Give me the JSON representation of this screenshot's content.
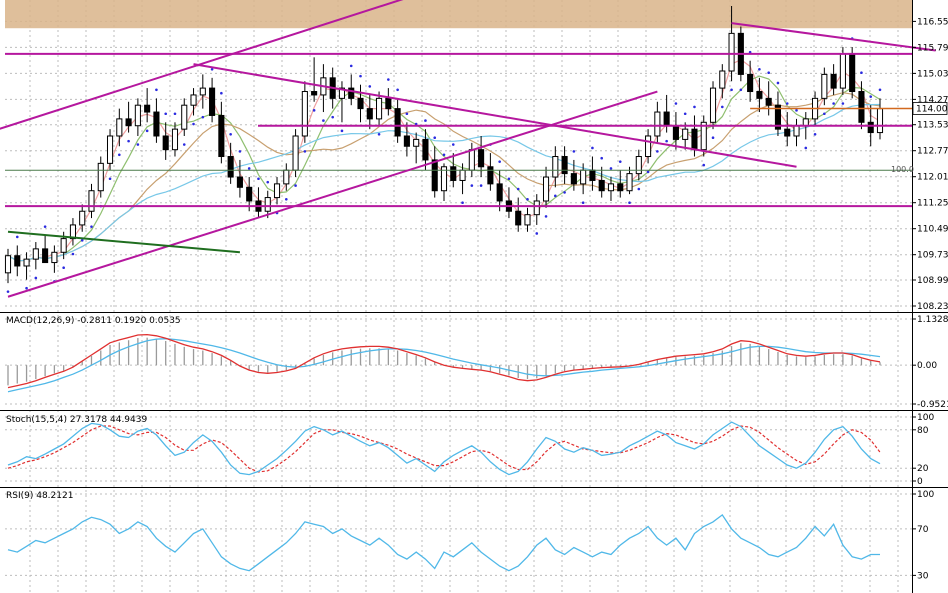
{
  "chart_data": {
    "type": "line",
    "panels": [
      {
        "name": "price",
        "type": "candlestick",
        "ylim": [
          108.23,
          117.0
        ],
        "ticks": [
          "116.550",
          "115.790",
          "115.030",
          "114.270",
          "113.530",
          "112.770",
          "112.010",
          "111.250",
          "110.490",
          "109.730",
          "108.990",
          "108.230"
        ],
        "tick_values": [
          116.55,
          115.79,
          115.03,
          114.27,
          113.53,
          112.77,
          112.01,
          111.25,
          110.49,
          109.73,
          108.99,
          108.23
        ],
        "current_price": "114.005",
        "level_label": "100.0",
        "horizontal_levels": [
          115.6,
          113.5,
          112.2,
          111.15
        ],
        "colors": {
          "trend": "#b5179e",
          "support_green": "#1f6e1f",
          "ma_fast": "#f0a0a0",
          "ma_mid": "#8fbf6f",
          "ma_slow": "#c8a070",
          "ma_long": "#78c8e8",
          "sar": "#2b2be0",
          "upper_band": "#c8a070",
          "current": "#d2691e"
        }
      },
      {
        "name": "macd",
        "label": "MACD(12,26,9) -0.2811 0.1920 0.0535",
        "ylim": [
          -0.9521,
          1.1328
        ],
        "ticks": [
          "1.1328",
          "0.00",
          "-0.9521"
        ],
        "tick_values": [
          1.1328,
          0.0,
          -0.9521
        ],
        "colors": {
          "macd": "#e03030",
          "signal": "#50b8e8",
          "hist": "#9a9a9a"
        }
      },
      {
        "name": "stochastic",
        "label": "Stoch(15,5,4) 27.3178 44.9439",
        "ylim": [
          0,
          100
        ],
        "ticks": [
          "100",
          "80",
          "20",
          "0"
        ],
        "tick_values": [
          100,
          80,
          20,
          0
        ],
        "colors": {
          "k": "#50b8e8",
          "d": "#e03030"
        }
      },
      {
        "name": "rsi",
        "label": "RSI(9) 48.2121",
        "ylim": [
          20,
          100
        ],
        "ticks": [
          "100",
          "70",
          "30"
        ],
        "tick_values": [
          100,
          70,
          30
        ],
        "colors": {
          "rsi": "#50b8e8"
        }
      }
    ],
    "candles_ohlc": [
      [
        109.2,
        109.9,
        108.9,
        109.7
      ],
      [
        109.7,
        110.0,
        109.1,
        109.4
      ],
      [
        109.4,
        109.8,
        109.0,
        109.6
      ],
      [
        109.6,
        110.1,
        109.3,
        109.9
      ],
      [
        109.9,
        110.3,
        109.5,
        109.5
      ],
      [
        109.5,
        110.0,
        109.2,
        109.8
      ],
      [
        109.8,
        110.4,
        109.6,
        110.2
      ],
      [
        110.2,
        110.8,
        110.0,
        110.6
      ],
      [
        110.6,
        111.2,
        110.4,
        111.0
      ],
      [
        111.0,
        111.8,
        110.8,
        111.6
      ],
      [
        111.6,
        112.6,
        111.4,
        112.4
      ],
      [
        112.4,
        113.4,
        112.2,
        113.2
      ],
      [
        113.2,
        114.0,
        112.9,
        113.7
      ],
      [
        113.7,
        114.2,
        113.3,
        113.5
      ],
      [
        113.5,
        114.3,
        113.2,
        114.1
      ],
      [
        114.1,
        114.6,
        113.6,
        113.9
      ],
      [
        113.9,
        114.3,
        113.0,
        113.2
      ],
      [
        113.2,
        113.6,
        112.5,
        112.8
      ],
      [
        112.8,
        113.6,
        112.6,
        113.4
      ],
      [
        113.4,
        114.3,
        113.2,
        114.1
      ],
      [
        114.1,
        114.6,
        113.8,
        114.4
      ],
      [
        114.4,
        115.0,
        114.0,
        114.6
      ],
      [
        114.6,
        114.9,
        113.6,
        113.8
      ],
      [
        113.8,
        114.2,
        112.4,
        112.6
      ],
      [
        112.6,
        113.0,
        111.8,
        112.0
      ],
      [
        112.0,
        112.5,
        111.4,
        111.7
      ],
      [
        111.7,
        112.0,
        111.0,
        111.3
      ],
      [
        111.3,
        111.7,
        110.8,
        111.0
      ],
      [
        111.0,
        111.6,
        110.8,
        111.4
      ],
      [
        111.4,
        112.0,
        111.2,
        111.8
      ],
      [
        111.8,
        112.4,
        111.6,
        112.2
      ],
      [
        112.2,
        113.4,
        112.0,
        113.2
      ],
      [
        113.2,
        114.8,
        113.0,
        114.5
      ],
      [
        114.5,
        115.5,
        114.2,
        114.4
      ],
      [
        114.4,
        115.3,
        113.9,
        114.9
      ],
      [
        114.9,
        115.2,
        114.0,
        114.3
      ],
      [
        114.3,
        114.8,
        113.6,
        114.6
      ],
      [
        114.6,
        115.0,
        114.1,
        114.3
      ],
      [
        114.3,
        114.7,
        113.6,
        114.0
      ],
      [
        114.0,
        114.4,
        113.4,
        113.7
      ],
      [
        113.7,
        114.5,
        113.5,
        114.3
      ],
      [
        114.3,
        114.6,
        113.8,
        114.0
      ],
      [
        114.0,
        114.3,
        113.0,
        113.2
      ],
      [
        113.2,
        113.6,
        112.6,
        112.9
      ],
      [
        112.9,
        113.3,
        112.4,
        113.1
      ],
      [
        113.1,
        113.4,
        112.2,
        112.5
      ],
      [
        112.5,
        112.9,
        111.4,
        111.6
      ],
      [
        111.6,
        112.4,
        111.3,
        112.3
      ],
      [
        112.3,
        112.7,
        111.7,
        111.9
      ],
      [
        111.9,
        112.4,
        111.5,
        112.2
      ],
      [
        112.2,
        113.0,
        112.0,
        112.8
      ],
      [
        112.8,
        113.2,
        112.0,
        112.3
      ],
      [
        112.3,
        112.7,
        111.6,
        111.8
      ],
      [
        111.8,
        112.2,
        111.0,
        111.3
      ],
      [
        111.3,
        111.7,
        110.8,
        111.0
      ],
      [
        111.0,
        111.4,
        110.4,
        110.6
      ],
      [
        110.6,
        111.1,
        110.4,
        110.9
      ],
      [
        110.9,
        111.5,
        110.6,
        111.3
      ],
      [
        111.3,
        112.3,
        111.1,
        112.0
      ],
      [
        112.0,
        112.9,
        111.7,
        112.6
      ],
      [
        112.6,
        112.9,
        111.8,
        112.1
      ],
      [
        112.1,
        112.5,
        111.6,
        111.8
      ],
      [
        111.8,
        112.4,
        111.5,
        112.2
      ],
      [
        112.2,
        112.6,
        111.6,
        111.9
      ],
      [
        111.9,
        112.3,
        111.4,
        111.6
      ],
      [
        111.6,
        112.0,
        111.3,
        111.8
      ],
      [
        111.8,
        112.2,
        111.4,
        111.6
      ],
      [
        111.6,
        112.3,
        111.5,
        112.1
      ],
      [
        112.1,
        112.8,
        111.9,
        112.6
      ],
      [
        112.6,
        113.4,
        112.4,
        113.2
      ],
      [
        113.2,
        114.2,
        113.0,
        113.9
      ],
      [
        113.9,
        114.4,
        113.3,
        113.5
      ],
      [
        113.5,
        113.9,
        112.8,
        113.1
      ],
      [
        113.1,
        113.6,
        112.8,
        113.4
      ],
      [
        113.4,
        113.8,
        112.6,
        112.8
      ],
      [
        112.8,
        113.8,
        112.6,
        113.6
      ],
      [
        113.6,
        114.8,
        113.4,
        114.6
      ],
      [
        114.6,
        115.3,
        114.3,
        115.1
      ],
      [
        115.1,
        117.0,
        114.8,
        116.2
      ],
      [
        116.2,
        116.4,
        114.8,
        115.0
      ],
      [
        115.0,
        115.4,
        114.2,
        114.5
      ],
      [
        114.5,
        114.9,
        113.9,
        114.3
      ],
      [
        114.3,
        114.8,
        113.8,
        114.1
      ],
      [
        114.1,
        114.5,
        113.2,
        113.4
      ],
      [
        113.4,
        113.9,
        112.9,
        113.2
      ],
      [
        113.2,
        113.7,
        112.9,
        113.5
      ],
      [
        113.5,
        113.9,
        113.1,
        113.7
      ],
      [
        113.7,
        114.5,
        113.5,
        114.3
      ],
      [
        114.3,
        115.2,
        114.1,
        115.0
      ],
      [
        115.0,
        115.3,
        114.4,
        114.6
      ],
      [
        114.6,
        115.8,
        114.4,
        115.6
      ],
      [
        115.6,
        115.8,
        114.3,
        114.5
      ],
      [
        114.5,
        114.8,
        113.4,
        113.6
      ],
      [
        113.6,
        114.1,
        112.9,
        113.3
      ],
      [
        113.3,
        114.3,
        113.1,
        114.0
      ]
    ],
    "macd_line": [
      -0.55,
      -0.5,
      -0.45,
      -0.38,
      -0.3,
      -0.22,
      -0.15,
      -0.05,
      0.1,
      0.25,
      0.4,
      0.55,
      0.62,
      0.68,
      0.74,
      0.75,
      0.72,
      0.66,
      0.58,
      0.5,
      0.44,
      0.4,
      0.33,
      0.24,
      0.12,
      -0.02,
      -0.12,
      -0.18,
      -0.2,
      -0.18,
      -0.14,
      -0.08,
      0.05,
      0.18,
      0.28,
      0.35,
      0.4,
      0.43,
      0.45,
      0.46,
      0.46,
      0.44,
      0.4,
      0.33,
      0.26,
      0.18,
      0.08,
      0.0,
      -0.05,
      -0.08,
      -0.1,
      -0.12,
      -0.16,
      -0.22,
      -0.28,
      -0.35,
      -0.38,
      -0.36,
      -0.3,
      -0.22,
      -0.16,
      -0.12,
      -0.1,
      -0.08,
      -0.06,
      -0.05,
      -0.04,
      -0.02,
      0.02,
      0.08,
      0.14,
      0.18,
      0.22,
      0.24,
      0.26,
      0.28,
      0.33,
      0.4,
      0.52,
      0.6,
      0.58,
      0.52,
      0.44,
      0.36,
      0.28,
      0.24,
      0.22,
      0.24,
      0.28,
      0.3,
      0.3,
      0.26,
      0.18,
      0.12,
      0.08
    ],
    "signal_line": [
      -0.65,
      -0.6,
      -0.55,
      -0.5,
      -0.45,
      -0.38,
      -0.3,
      -0.22,
      -0.12,
      0.0,
      0.12,
      0.25,
      0.36,
      0.45,
      0.53,
      0.6,
      0.64,
      0.65,
      0.63,
      0.6,
      0.56,
      0.52,
      0.48,
      0.43,
      0.37,
      0.3,
      0.22,
      0.14,
      0.07,
      0.01,
      -0.03,
      -0.05,
      -0.03,
      0.02,
      0.08,
      0.15,
      0.21,
      0.27,
      0.31,
      0.35,
      0.38,
      0.4,
      0.4,
      0.39,
      0.36,
      0.32,
      0.27,
      0.21,
      0.15,
      0.1,
      0.05,
      0.01,
      -0.03,
      -0.07,
      -0.12,
      -0.17,
      -0.22,
      -0.25,
      -0.26,
      -0.25,
      -0.23,
      -0.2,
      -0.17,
      -0.15,
      -0.12,
      -0.1,
      -0.08,
      -0.06,
      -0.04,
      -0.01,
      0.03,
      0.07,
      0.11,
      0.15,
      0.18,
      0.21,
      0.24,
      0.28,
      0.33,
      0.39,
      0.44,
      0.46,
      0.46,
      0.44,
      0.41,
      0.37,
      0.33,
      0.31,
      0.3,
      0.3,
      0.3,
      0.29,
      0.27,
      0.24,
      0.21
    ],
    "stoch_k": [
      25,
      30,
      38,
      35,
      42,
      50,
      58,
      70,
      82,
      90,
      88,
      80,
      70,
      68,
      78,
      82,
      72,
      55,
      40,
      45,
      60,
      72,
      62,
      45,
      25,
      12,
      10,
      15,
      25,
      35,
      48,
      62,
      78,
      85,
      80,
      72,
      78,
      70,
      62,
      55,
      60,
      52,
      40,
      28,
      35,
      25,
      15,
      30,
      40,
      48,
      55,
      45,
      30,
      18,
      10,
      15,
      30,
      50,
      68,
      62,
      50,
      45,
      52,
      48,
      40,
      42,
      45,
      55,
      62,
      70,
      78,
      72,
      60,
      55,
      50,
      58,
      72,
      82,
      92,
      85,
      70,
      55,
      45,
      35,
      25,
      20,
      28,
      45,
      65,
      80,
      85,
      70,
      50,
      35,
      27
    ],
    "stoch_d": [
      20,
      24,
      30,
      33,
      38,
      44,
      52,
      60,
      70,
      80,
      86,
      86,
      80,
      74,
      72,
      76,
      76,
      68,
      56,
      48,
      48,
      58,
      64,
      60,
      48,
      34,
      20,
      14,
      16,
      24,
      34,
      46,
      60,
      74,
      80,
      80,
      76,
      74,
      70,
      64,
      60,
      56,
      50,
      42,
      36,
      30,
      24,
      24,
      30,
      38,
      46,
      48,
      44,
      34,
      24,
      18,
      18,
      30,
      46,
      58,
      62,
      56,
      50,
      48,
      46,
      44,
      44,
      48,
      54,
      60,
      68,
      74,
      72,
      66,
      60,
      58,
      62,
      70,
      80,
      86,
      84,
      76,
      64,
      52,
      42,
      32,
      26,
      30,
      42,
      58,
      72,
      80,
      76,
      64,
      45
    ],
    "rsi": [
      52,
      50,
      55,
      60,
      58,
      62,
      66,
      70,
      76,
      80,
      78,
      74,
      66,
      70,
      76,
      72,
      62,
      55,
      50,
      58,
      66,
      70,
      58,
      46,
      40,
      36,
      34,
      40,
      46,
      52,
      58,
      66,
      76,
      74,
      72,
      66,
      70,
      64,
      60,
      56,
      62,
      56,
      48,
      44,
      50,
      44,
      36,
      50,
      46,
      52,
      58,
      50,
      44,
      38,
      34,
      38,
      46,
      56,
      62,
      52,
      48,
      54,
      50,
      46,
      50,
      48,
      56,
      62,
      66,
      72,
      62,
      56,
      62,
      52,
      66,
      72,
      76,
      82,
      70,
      62,
      58,
      54,
      48,
      46,
      50,
      54,
      62,
      72,
      64,
      74,
      56,
      46,
      44,
      48,
      48
    ],
    "rsi_label_values": {
      "rsi": "48.2121"
    }
  }
}
